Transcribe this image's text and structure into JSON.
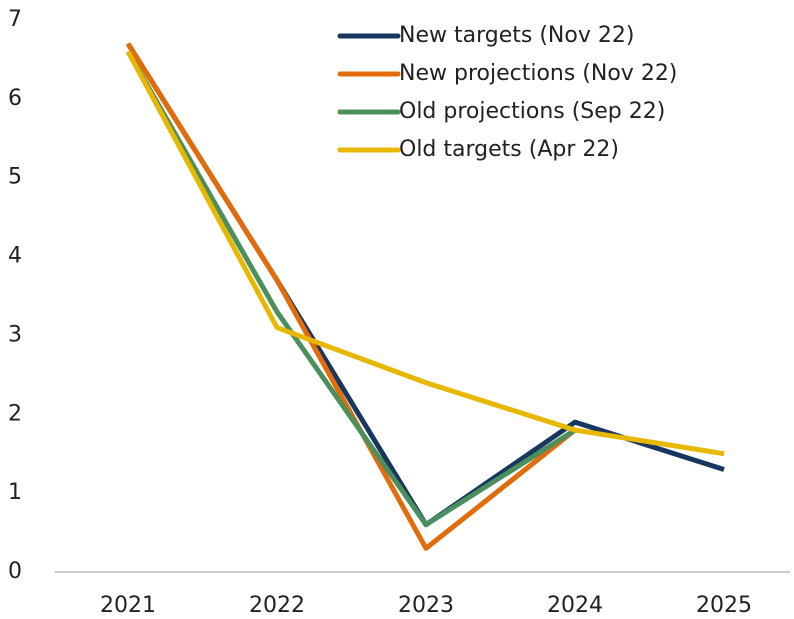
{
  "chart_data": {
    "type": "line",
    "categories": [
      "2021",
      "2022",
      "2023",
      "2024",
      "2025"
    ],
    "series": [
      {
        "name": "New targets (Nov 22)",
        "color": "#17375e",
        "values": [
          6.7,
          3.7,
          0.6,
          1.9,
          1.3
        ]
      },
      {
        "name": "New projections (Nov 22)",
        "color": "#e36c0a",
        "values": [
          6.7,
          3.7,
          0.3,
          1.8,
          null
        ]
      },
      {
        "name": "Old projections (Sep 22)",
        "color": "#4a8f5c",
        "values": [
          6.6,
          3.3,
          0.6,
          1.8,
          null
        ]
      },
      {
        "name": "Old targets (Apr 22)",
        "color": "#e8b800",
        "values": [
          6.6,
          3.1,
          2.4,
          1.8,
          1.5
        ]
      }
    ],
    "ylim": [
      0,
      7
    ],
    "yticks": [
      0,
      1,
      2,
      3,
      4,
      5,
      6,
      7
    ],
    "grid": false,
    "legend": "top-right"
  }
}
